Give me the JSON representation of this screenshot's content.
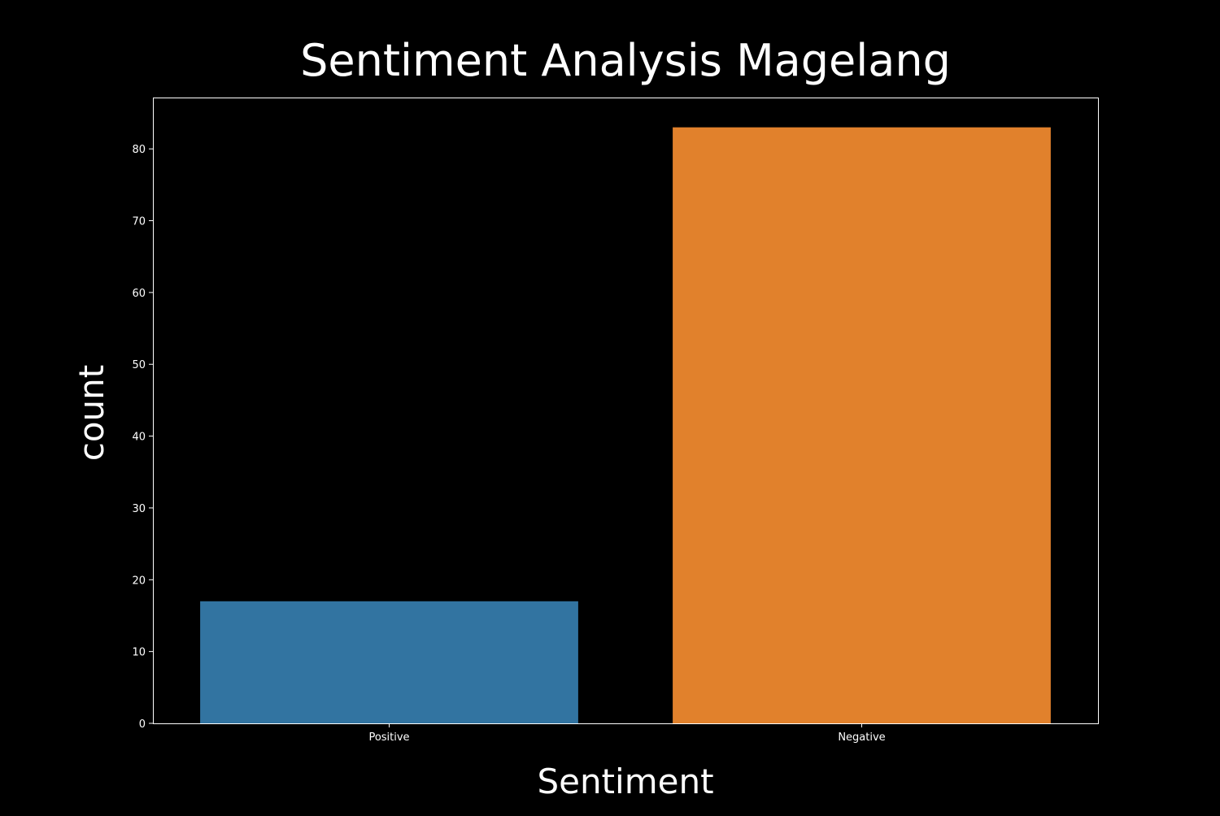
{
  "chart_data": {
    "type": "bar",
    "title": "Sentiment Analysis Magelang",
    "xlabel": "Sentiment",
    "ylabel": "count",
    "categories": [
      "Positive",
      "Negative"
    ],
    "values": [
      17,
      83
    ],
    "colors": [
      "#3274a1",
      "#e1812c"
    ],
    "ylim": [
      0,
      87.15
    ],
    "yticks": [
      0,
      10,
      20,
      30,
      40,
      50,
      60,
      70,
      80
    ],
    "grid": false,
    "legend": "none",
    "background": "#000000",
    "text_color": "#ffffff"
  }
}
